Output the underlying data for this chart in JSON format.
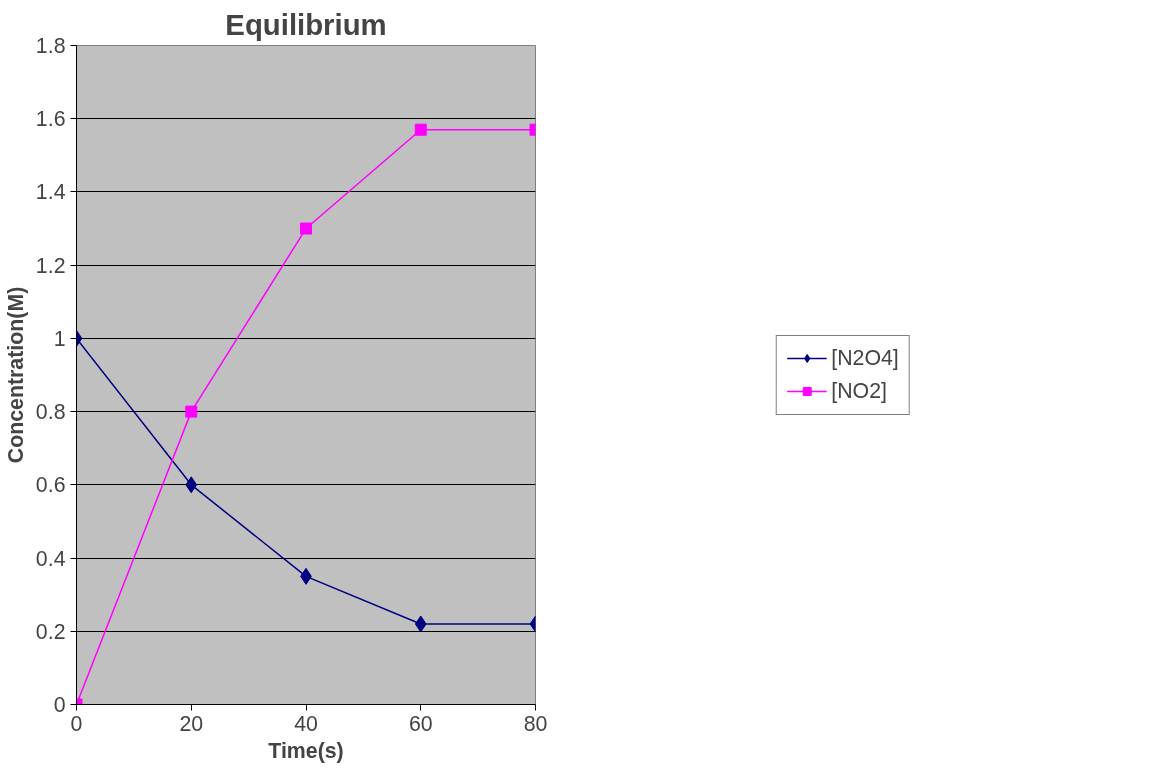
{
  "chart_data": {
    "type": "line",
    "title": "Equilibrium",
    "xlabel": "Time(s)",
    "ylabel": "Concentration(M)",
    "x": [
      0,
      20,
      40,
      60,
      80
    ],
    "series": [
      {
        "name": "[N2O4]",
        "color": "#000080",
        "marker": "diamond",
        "values": [
          1,
          0.6,
          0.35,
          0.22,
          0.22
        ]
      },
      {
        "name": "[NO2]",
        "color": "#ff00ff",
        "marker": "square",
        "values": [
          0,
          0.8,
          1.3,
          1.57,
          1.57
        ]
      }
    ],
    "xlim": [
      0,
      80
    ],
    "xticks": [
      0,
      20,
      40,
      60,
      80
    ],
    "ylim": [
      0,
      1.8
    ],
    "yticks": [
      0,
      0.2,
      0.4,
      0.6,
      0.8,
      1,
      1.2,
      1.4,
      1.6,
      1.8
    ],
    "grid": "y",
    "legend": "right",
    "line_style": "solid"
  }
}
